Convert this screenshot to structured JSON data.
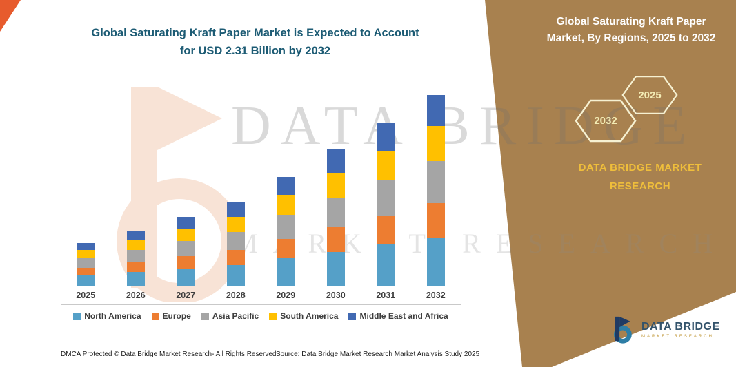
{
  "header": {
    "left_title_line1": "Global Saturating Kraft Paper Market is Expected to Account",
    "left_title_line2": "for USD 2.31 Billion by 2032"
  },
  "right_panel": {
    "title_line1": "Global Saturating Kraft Paper",
    "title_line2": "Market, By Regions, 2025 to 2032",
    "hexagon_left_year": "2032",
    "hexagon_right_year": "2025",
    "brand_line1": "DATA BRIDGE MARKET",
    "brand_line2": "RESEARCH"
  },
  "watermark": {
    "line1": "DATA BRIDGE",
    "line2": "MARKET RESEARCH"
  },
  "footer": {
    "dmca": "DMCA Protected © Data Bridge Market Research-  All Rights Reserved.",
    "source": "Source: Data Bridge Market Research  Market Analysis Study 2025"
  },
  "logo": {
    "name": "DATA BRIDGE",
    "tagline": "MARKET RESEARCH"
  },
  "colors": {
    "panel_brown": "#A8814F",
    "corner_orange": "#E75B2D",
    "title_teal": "#1C5B74",
    "brand_gold": "#EFBE3B"
  },
  "chart_data": {
    "type": "bar",
    "stacked": true,
    "title": "Global Saturating Kraft Paper Market is Expected to Account for USD 2.31 Billion by 2032",
    "categories": [
      "2025",
      "2026",
      "2027",
      "2028",
      "2029",
      "2030",
      "2031",
      "2032"
    ],
    "unit": "USD Billion (estimated from bar heights; 2032 total stated as 2.31)",
    "series": [
      {
        "name": "North America",
        "color": "#55A0C8",
        "values": [
          0.13,
          0.17,
          0.21,
          0.25,
          0.33,
          0.41,
          0.5,
          0.58
        ]
      },
      {
        "name": "Europe",
        "color": "#ED7D31",
        "values": [
          0.09,
          0.12,
          0.15,
          0.18,
          0.24,
          0.3,
          0.35,
          0.42
        ]
      },
      {
        "name": "Asia Pacific",
        "color": "#A5A5A5",
        "values": [
          0.11,
          0.14,
          0.18,
          0.22,
          0.29,
          0.36,
          0.43,
          0.51
        ]
      },
      {
        "name": "South America",
        "color": "#FFC000",
        "values": [
          0.1,
          0.12,
          0.15,
          0.18,
          0.24,
          0.3,
          0.35,
          0.42
        ]
      },
      {
        "name": "Middle East and Africa",
        "color": "#4169B2",
        "values": [
          0.09,
          0.11,
          0.14,
          0.18,
          0.22,
          0.28,
          0.34,
          0.38
        ]
      }
    ],
    "totals": [
      0.52,
      0.66,
      0.83,
      1.01,
      1.32,
      1.65,
      1.97,
      2.31
    ],
    "ylim": [
      0,
      2.5
    ],
    "grid": false,
    "y_axis_visible": false,
    "legend_position": "bottom"
  }
}
